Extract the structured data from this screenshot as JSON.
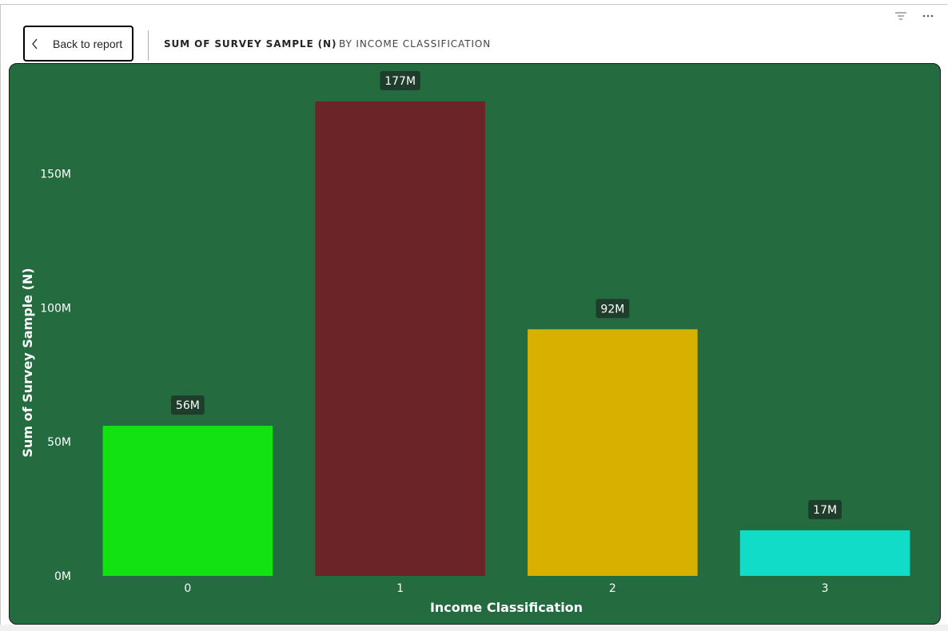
{
  "header": {
    "back_label": "Back to report",
    "title_measure": "SUM OF SURVEY SAMPLE (N)",
    "title_by": "BY INCOME CLASSIFICATION",
    "icons": [
      "filter-icon",
      "more-options-icon",
      "chevron-left-icon"
    ]
  },
  "colors": {
    "panel_background": "#246b3f",
    "label_background": "#1e3d2a"
  },
  "chart_data": {
    "type": "bar",
    "xlabel": "Income Classification",
    "ylabel": "Sum of Survey Sample (N)",
    "categories": [
      "0",
      "1",
      "2",
      "3"
    ],
    "values": [
      56,
      177,
      92,
      17
    ],
    "value_unit": "M",
    "data_labels": [
      "56M",
      "177M",
      "92M",
      "17M"
    ],
    "bar_colors": [
      "#12e212",
      "#6b2428",
      "#d8b000",
      "#10dcc8"
    ],
    "y_ticks": [
      0,
      50,
      100,
      150
    ],
    "y_tick_labels": [
      "0M",
      "50M",
      "100M",
      "150M"
    ],
    "ylim": [
      0,
      177
    ],
    "grid": false,
    "legend": "none"
  }
}
